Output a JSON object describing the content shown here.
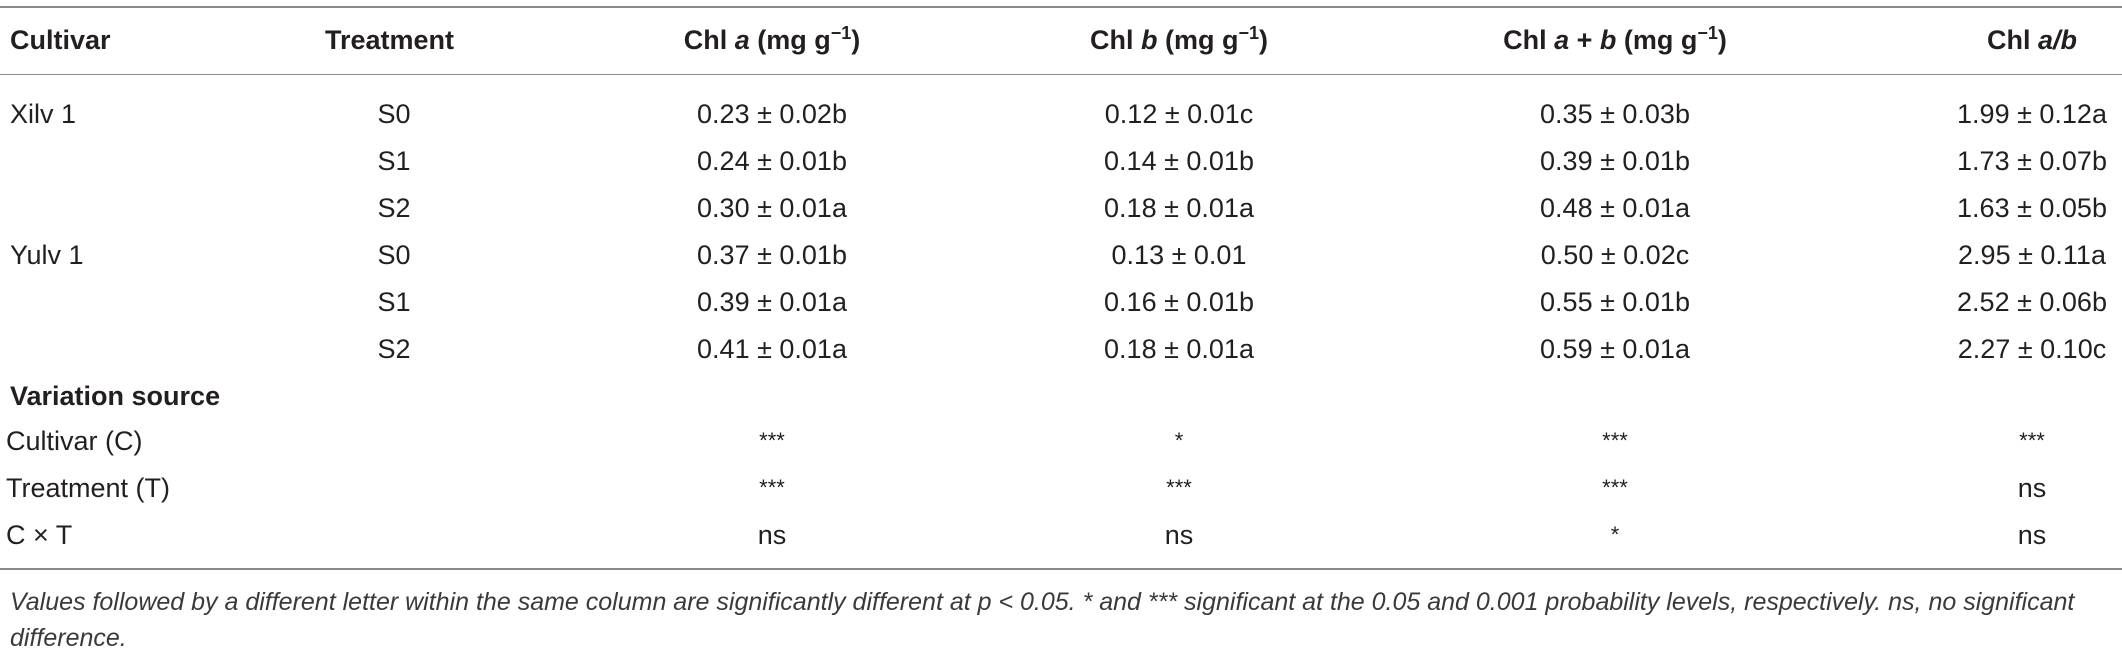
{
  "table": {
    "headers": {
      "cultivar": "Cultivar",
      "treatment": "Treatment",
      "chl_a": {
        "pre": "Chl ",
        "var": "a",
        "post": " (mg g",
        "sup": "−1",
        "end": ")"
      },
      "chl_b": {
        "pre": "Chl ",
        "var": "b",
        "post": " (mg g",
        "sup": "−1",
        "end": ")"
      },
      "chl_ab": {
        "pre": "Chl ",
        "var1": "a",
        "mid": " + ",
        "var2": "b",
        "post": " (mg g",
        "sup": "−1",
        "end": ")"
      },
      "chl_ratio": {
        "pre": "Chl ",
        "var": "a/b"
      }
    },
    "rows": [
      {
        "cultivar": "Xilv 1",
        "treatment": "S0",
        "chl_a": "0.23 ± 0.02b",
        "chl_b": "0.12 ± 0.01c",
        "chl_ab": "0.35 ± 0.03b",
        "chl_ratio": "1.99 ± 0.12a"
      },
      {
        "cultivar": "",
        "treatment": "S1",
        "chl_a": "0.24 ± 0.01b",
        "chl_b": "0.14 ± 0.01b",
        "chl_ab": "0.39 ± 0.01b",
        "chl_ratio": "1.73 ± 0.07b"
      },
      {
        "cultivar": "",
        "treatment": "S2",
        "chl_a": "0.30 ± 0.01a",
        "chl_b": "0.18 ± 0.01a",
        "chl_ab": "0.48 ± 0.01a",
        "chl_ratio": "1.63 ± 0.05b"
      },
      {
        "cultivar": "Yulv 1",
        "treatment": "S0",
        "chl_a": "0.37 ± 0.01b",
        "chl_b": "0.13 ± 0.01",
        "chl_ab": "0.50 ± 0.02c",
        "chl_ratio": "2.95 ± 0.11a"
      },
      {
        "cultivar": "",
        "treatment": "S1",
        "chl_a": "0.39 ± 0.01a",
        "chl_b": "0.16 ± 0.01b",
        "chl_ab": "0.55 ± 0.01b",
        "chl_ratio": "2.52 ± 0.06b"
      },
      {
        "cultivar": "",
        "treatment": "S2",
        "chl_a": "0.41 ± 0.01a",
        "chl_b": "0.18 ± 0.01a",
        "chl_ab": "0.59 ± 0.01a",
        "chl_ratio": "2.27 ± 0.10c"
      }
    ],
    "variation_title": "Variation source",
    "variation_rows": [
      {
        "source": "Cultivar (C)",
        "chl_a": "***",
        "chl_b": "*",
        "chl_ab": "***",
        "chl_ratio": "***"
      },
      {
        "source": "Treatment (T)",
        "chl_a": "***",
        "chl_b": "***",
        "chl_ab": "***",
        "chl_ratio": "ns"
      },
      {
        "source": "C × T",
        "chl_a": "ns",
        "chl_b": "ns",
        "chl_ab": "*",
        "chl_ratio": "ns"
      }
    ]
  },
  "footnote": "Values followed by a different letter within the same column are significantly different at p < 0.05. * and *** significant at the 0.05 and 0.001 probability levels, respectively. ns, no significant difference."
}
